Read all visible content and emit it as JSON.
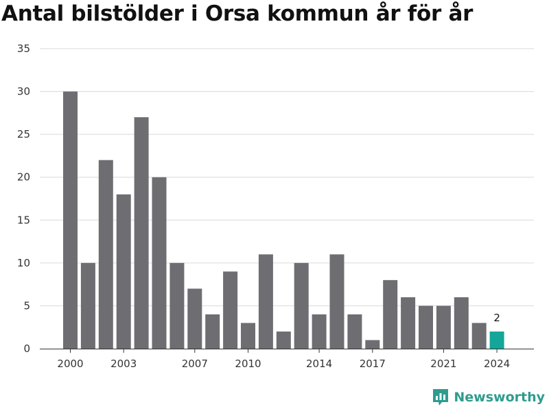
{
  "title": "Antal bilstölder i Orsa kommun år för år",
  "brand": {
    "name": "Newsworthy",
    "color": "#2e9c8e",
    "icon": "newsworthy-logo-icon"
  },
  "colors": {
    "bar": "#6e6d72",
    "highlight": "#13a699",
    "grid": "#d9d9d9"
  },
  "chart_data": {
    "type": "bar",
    "title": "Antal bilstölder i Orsa kommun år för år",
    "xlabel": "",
    "ylabel": "",
    "categories": [
      "2000",
      "2001",
      "2002",
      "2003",
      "2004",
      "2005",
      "2006",
      "2007",
      "2008",
      "2009",
      "2010",
      "2011",
      "2012",
      "2013",
      "2014",
      "2015",
      "2016",
      "2017",
      "2018",
      "2019",
      "2020",
      "2021",
      "2022",
      "2023",
      "2024"
    ],
    "values": [
      30,
      10,
      22,
      18,
      27,
      20,
      10,
      7,
      4,
      9,
      3,
      11,
      2,
      10,
      4,
      11,
      4,
      1,
      8,
      6,
      5,
      5,
      6,
      3,
      2
    ],
    "x_tick_labels": [
      "2000",
      "2003",
      "2007",
      "2010",
      "2014",
      "2017",
      "2021",
      "2024"
    ],
    "ylim": [
      0,
      35
    ],
    "yticks": [
      0,
      5,
      10,
      15,
      20,
      25,
      30,
      35
    ],
    "highlight": {
      "category": "2024",
      "label": "2"
    },
    "grid": true,
    "legend": "none"
  }
}
